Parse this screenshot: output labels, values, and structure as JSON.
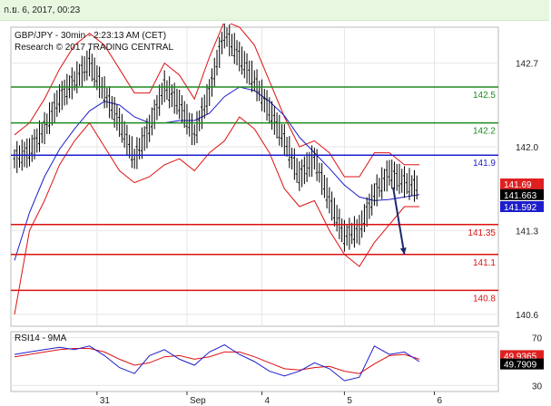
{
  "header": {
    "timestamp": "ก.ย. 6, 2017, 00:23"
  },
  "chart_data": {
    "type": "line",
    "title": "GBP/JPY - 30min - 2:23:13 AM (CET)",
    "subtitle": "Research © 2017 TRADING CENTRAL",
    "price_panel": {
      "ylim": [
        140.5,
        143.0
      ],
      "yticks": [
        140.6,
        141.3,
        142.0,
        142.7
      ],
      "ytick_labels": [
        "140.6",
        "141.3",
        "142.0",
        "142.7"
      ],
      "xlim": [
        0,
        108
      ],
      "support_resistance": [
        {
          "label": "142.5",
          "value": 142.5,
          "color": "#1e8a1e"
        },
        {
          "label": "142.2",
          "value": 142.2,
          "color": "#1e8a1e"
        },
        {
          "label": "141.9",
          "value": 141.93,
          "color": "#1d1dcc"
        },
        {
          "label": "141.35",
          "value": 141.35,
          "color": "#dd1111"
        },
        {
          "label": "141.1",
          "value": 141.1,
          "color": "#dd1111"
        },
        {
          "label": "140.8",
          "value": 140.8,
          "color": "#dd1111"
        }
      ],
      "price_tags": [
        {
          "label": "141.69",
          "value": 141.69,
          "bg": "#e02020",
          "fg": "#ffffff"
        },
        {
          "label": "141.663",
          "value": 141.6,
          "bg": "#000000",
          "fg": "#ffffff"
        },
        {
          "label": "141.592",
          "value": 141.5,
          "bg": "#1d1dcc",
          "fg": "#ffffff"
        }
      ],
      "price_series": {
        "x": [
          0,
          4,
          8,
          12,
          16,
          20,
          24,
          28,
          32,
          36,
          40,
          44,
          48,
          52,
          56,
          60,
          64,
          68,
          72,
          76,
          80,
          84,
          88,
          92,
          96,
          100,
          104,
          108
        ],
        "close": [
          141.9,
          141.95,
          142.15,
          142.4,
          142.55,
          142.7,
          142.45,
          142.2,
          141.9,
          142.15,
          142.5,
          142.35,
          142.1,
          142.45,
          142.95,
          142.75,
          142.55,
          142.3,
          142.05,
          141.75,
          141.9,
          141.55,
          141.25,
          141.3,
          141.6,
          141.78,
          141.7,
          141.65
        ]
      },
      "moving_average": {
        "x": [
          0,
          4,
          8,
          12,
          16,
          20,
          24,
          28,
          32,
          36,
          40,
          44,
          48,
          52,
          56,
          60,
          64,
          68,
          72,
          76,
          80,
          84,
          88,
          92,
          96,
          100,
          104,
          108
        ],
        "values": [
          141.05,
          141.45,
          141.75,
          141.98,
          142.15,
          142.3,
          142.38,
          142.35,
          142.25,
          142.2,
          142.2,
          142.22,
          142.22,
          142.28,
          142.42,
          142.5,
          142.47,
          142.38,
          142.26,
          142.08,
          141.95,
          141.82,
          141.68,
          141.58,
          141.55,
          141.56,
          141.58,
          141.6
        ]
      },
      "bollinger_upper": {
        "x": [
          0,
          4,
          8,
          12,
          16,
          20,
          24,
          28,
          32,
          36,
          40,
          44,
          48,
          52,
          56,
          60,
          64,
          68,
          72,
          76,
          80,
          84,
          88,
          92,
          96,
          100,
          104,
          108
        ],
        "values": [
          142.1,
          142.2,
          142.4,
          142.65,
          142.85,
          142.95,
          142.85,
          142.65,
          142.45,
          142.45,
          142.7,
          142.6,
          142.4,
          142.75,
          143.05,
          143.0,
          142.85,
          142.55,
          142.25,
          142.0,
          142.05,
          141.95,
          141.75,
          141.75,
          141.95,
          141.95,
          141.85,
          141.85
        ]
      },
      "bollinger_lower": {
        "x": [
          0,
          4,
          8,
          12,
          16,
          20,
          24,
          28,
          32,
          36,
          40,
          44,
          48,
          52,
          56,
          60,
          64,
          68,
          72,
          76,
          80,
          84,
          88,
          92,
          96,
          100,
          104,
          108
        ],
        "values": [
          140.6,
          141.3,
          141.55,
          141.85,
          142.05,
          142.2,
          142.0,
          141.8,
          141.7,
          141.75,
          141.85,
          141.9,
          141.8,
          141.95,
          142.05,
          142.25,
          142.15,
          141.95,
          141.65,
          141.5,
          141.55,
          141.3,
          141.1,
          141.0,
          141.2,
          141.35,
          141.5,
          141.5
        ]
      },
      "forecast_arrow": {
        "from": [
          101,
          141.66
        ],
        "to": [
          104,
          141.1
        ]
      }
    },
    "rsi_panel": {
      "title": "RSI14 - 9MA",
      "ylim": [
        25,
        75
      ],
      "yticks": [
        30,
        70
      ],
      "ytick_labels": [
        "30",
        "70"
      ],
      "tags": [
        {
          "label": "49.9365",
          "value": 55,
          "bg": "#e02020",
          "fg": "#ffffff"
        },
        {
          "label": "49.7909",
          "value": 48,
          "bg": "#000000",
          "fg": "#ffffff"
        }
      ],
      "rsi": {
        "x": [
          0,
          4,
          8,
          12,
          16,
          20,
          24,
          28,
          32,
          36,
          40,
          44,
          48,
          52,
          56,
          60,
          64,
          68,
          72,
          76,
          80,
          84,
          88,
          92,
          96,
          100,
          104,
          108
        ],
        "values": [
          56,
          58,
          60,
          62,
          60,
          63,
          55,
          45,
          40,
          55,
          60,
          52,
          47,
          58,
          64,
          56,
          50,
          42,
          38,
          42,
          49,
          44,
          34,
          37,
          63,
          56,
          58,
          50
        ]
      },
      "ma": {
        "x": [
          0,
          4,
          8,
          12,
          16,
          20,
          24,
          28,
          32,
          36,
          40,
          44,
          48,
          52,
          56,
          60,
          64,
          68,
          72,
          76,
          80,
          84,
          88,
          92,
          96,
          100,
          104,
          108
        ],
        "values": [
          54,
          56,
          58,
          60,
          61,
          61,
          58,
          52,
          47,
          49,
          54,
          55,
          52,
          54,
          58,
          58,
          54,
          49,
          44,
          43,
          45,
          46,
          42,
          40,
          48,
          55,
          56,
          52
        ]
      }
    },
    "x_axis": {
      "ticks": [
        {
          "x": 11,
          "label": "31"
        },
        {
          "x": 23,
          "label": "Sep"
        },
        {
          "x": 33,
          "label": "4"
        },
        {
          "x": 44,
          "label": "5"
        },
        {
          "x": 56,
          "label": "6"
        }
      ]
    },
    "colors": {
      "bollinger": "#dd1111",
      "moving_average": "#1d1dcc",
      "price": "#000000",
      "grid": "#e6e6e6"
    }
  }
}
